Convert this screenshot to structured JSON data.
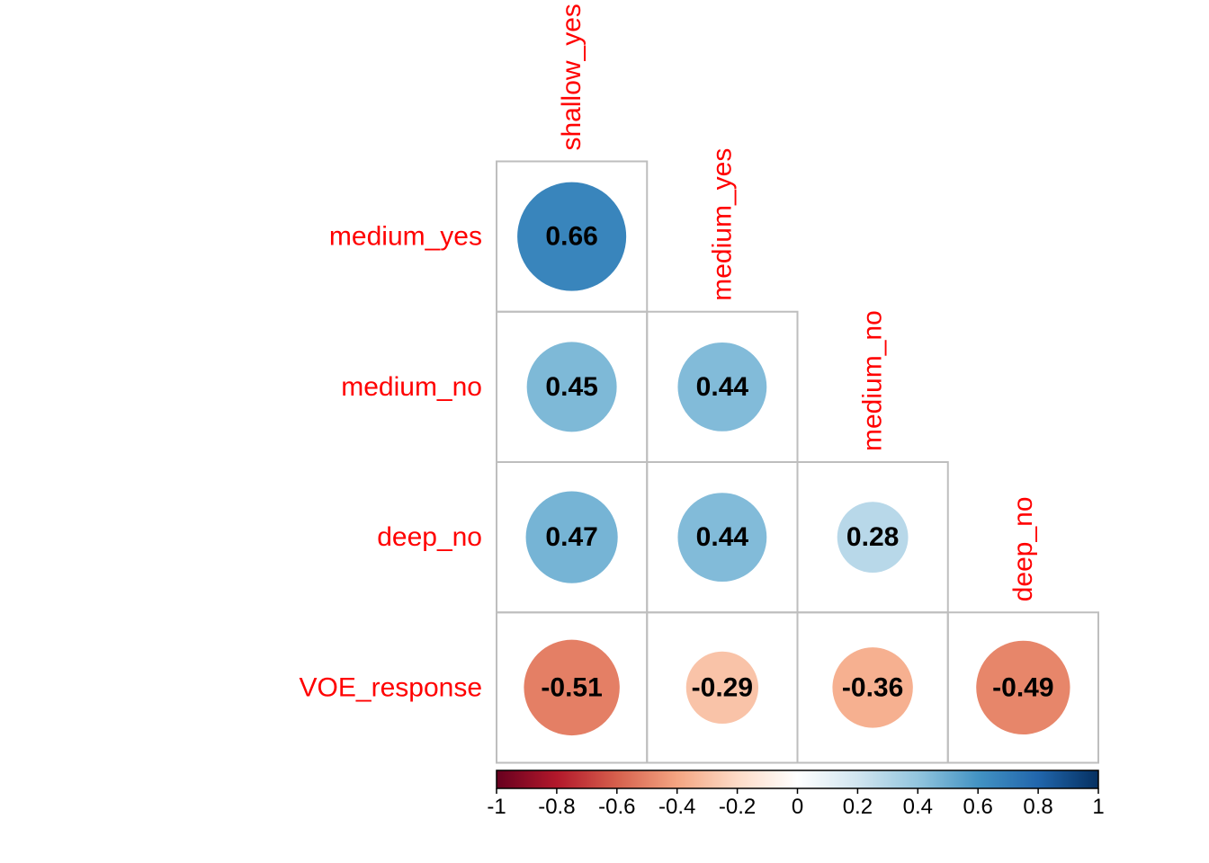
{
  "chart_data": {
    "type": "heatmap",
    "variables": [
      "shallow_yes",
      "medium_yes",
      "medium_no",
      "deep_no",
      "VOE_response"
    ],
    "row_labels": [
      "medium_yes",
      "medium_no",
      "deep_no",
      "VOE_response"
    ],
    "col_labels": [
      "shallow_yes",
      "medium_yes",
      "medium_no",
      "deep_no"
    ],
    "matrix": [
      [
        0.66,
        null,
        null,
        null
      ],
      [
        0.45,
        0.44,
        null,
        null
      ],
      [
        0.47,
        0.44,
        0.28,
        null
      ],
      [
        -0.51,
        -0.29,
        -0.36,
        -0.49
      ]
    ],
    "color_scale": {
      "range": [
        -1,
        1
      ],
      "ticks": [
        "-1",
        "-0.8",
        "-0.6",
        "-0.4",
        "-0.2",
        "0",
        "0.2",
        "0.4",
        "0.6",
        "0.8",
        "1"
      ],
      "stops": [
        "#67001f",
        "#b2182b",
        "#d6604d",
        "#f4a582",
        "#fddbc7",
        "#ffffff",
        "#d1e5f0",
        "#92c5de",
        "#4393c3",
        "#2166ac",
        "#053061"
      ]
    },
    "label_color": "#ff0000",
    "grid_color": "#bebebe",
    "legend_position": "bottom"
  }
}
